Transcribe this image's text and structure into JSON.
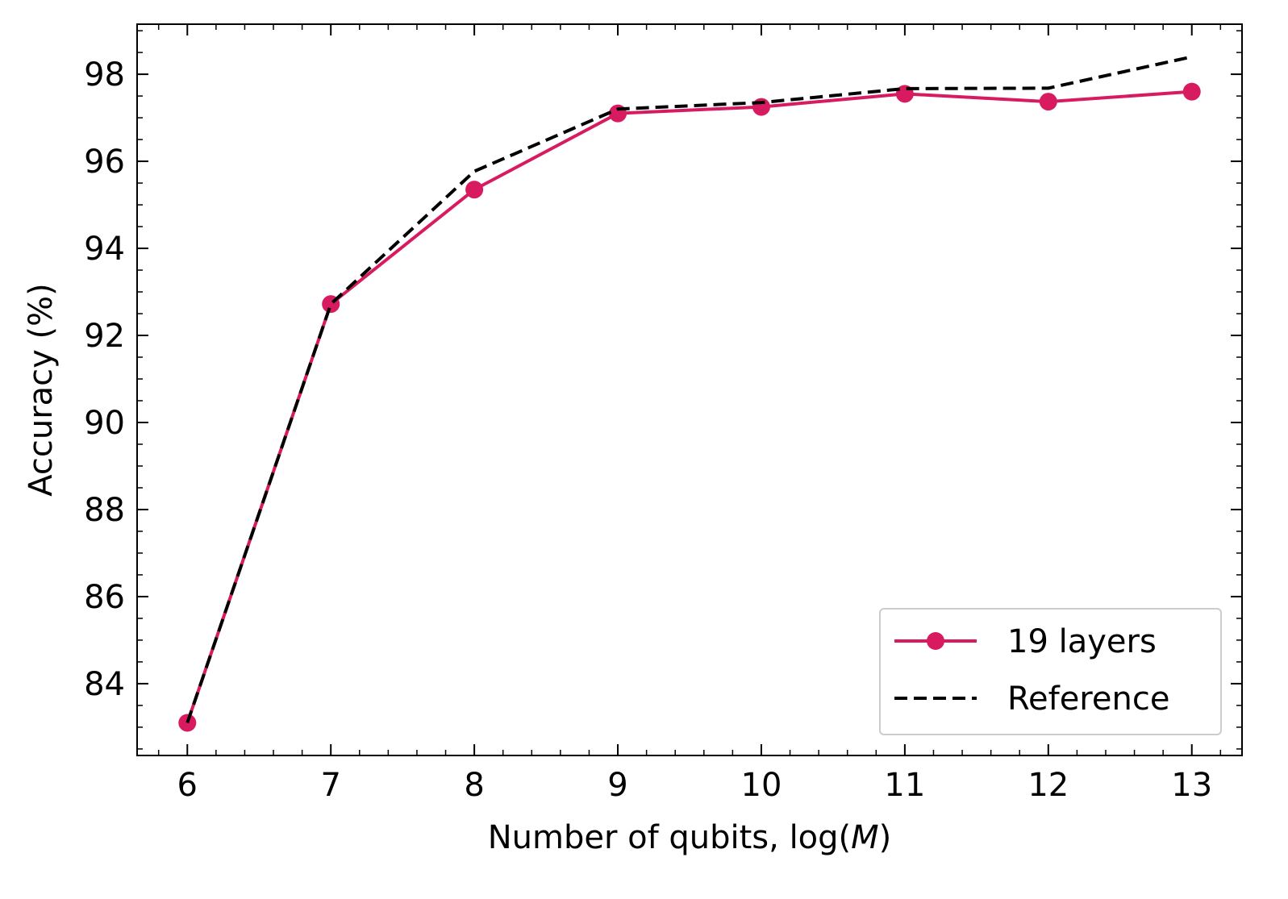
{
  "chart_data": {
    "type": "line",
    "xlabel_prefix": "Number of qubits, log(",
    "xlabel_var": "M",
    "xlabel_suffix": ")",
    "ylabel": "Accuracy (%)",
    "x": [
      6,
      7,
      8,
      9,
      10,
      11,
      12,
      13
    ],
    "xlim": [
      5.65,
      13.35
    ],
    "ylim": [
      82.35,
      99.15
    ],
    "xticks": [
      6,
      7,
      8,
      9,
      10,
      11,
      12,
      13
    ],
    "yticks": [
      84,
      86,
      88,
      90,
      92,
      94,
      96,
      98
    ],
    "x_minor_step": 0.2,
    "y_minor_step": 0.5,
    "grid": false,
    "legend_position": "lower-right",
    "series": [
      {
        "name": "19 layers",
        "values": [
          83.1,
          92.72,
          95.35,
          97.1,
          97.25,
          97.55,
          97.37,
          97.6
        ],
        "color": "#d81b60",
        "style": "solid",
        "marker": "circle"
      },
      {
        "name": "Reference",
        "values": [
          83.1,
          92.72,
          95.77,
          97.2,
          97.35,
          97.67,
          97.68,
          98.4
        ],
        "color": "#000000",
        "style": "dashed",
        "marker": "none"
      }
    ]
  }
}
